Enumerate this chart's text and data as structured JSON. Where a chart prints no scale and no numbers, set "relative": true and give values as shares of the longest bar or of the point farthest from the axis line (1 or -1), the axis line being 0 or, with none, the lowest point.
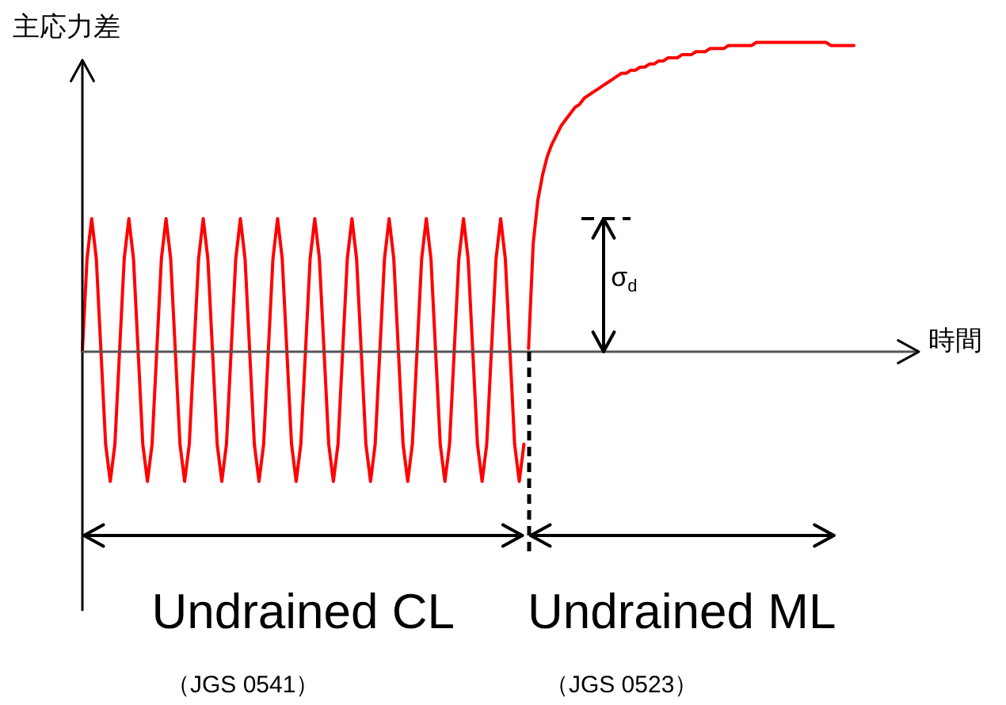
{
  "chart_data": {
    "type": "line",
    "relative": true,
    "tick_labels": false,
    "legend": false,
    "marker": "none",
    "line_style": "solid",
    "ylabel": "主応力差",
    "xlabel": "時間",
    "categories": [
      null,
      null,
      null,
      null,
      null,
      null,
      null,
      null,
      null,
      null,
      null,
      null,
      null,
      null,
      null,
      null,
      null,
      null,
      null,
      null,
      null,
      null,
      null,
      null,
      null,
      null,
      null,
      null,
      null,
      null,
      null,
      null,
      null,
      null,
      null,
      null,
      null,
      null,
      null,
      null,
      null,
      null,
      null,
      null,
      null,
      null,
      null,
      null,
      null,
      null,
      null,
      null,
      null,
      null,
      null,
      null,
      null,
      null,
      null,
      null,
      null,
      null,
      null,
      null,
      null,
      null,
      null,
      null,
      null,
      null,
      null,
      null,
      null,
      null,
      null,
      null,
      null,
      null,
      null,
      null,
      null,
      null,
      null,
      null,
      null,
      null,
      null,
      null,
      null,
      null,
      null,
      null,
      null,
      null,
      null,
      null,
      null,
      null,
      null,
      null,
      null,
      null,
      null,
      null,
      null,
      null,
      null,
      null,
      null,
      null,
      null,
      null,
      null,
      null,
      null,
      null,
      null,
      null,
      null,
      null,
      null,
      null,
      null,
      null,
      null,
      null,
      null,
      null,
      null,
      null,
      null,
      null,
      null,
      null,
      null,
      null,
      null,
      null,
      null,
      null,
      null,
      null,
      null,
      null,
      null,
      null,
      null,
      null,
      null,
      null,
      null,
      null,
      null,
      null,
      null,
      null,
      null,
      null,
      null,
      null,
      null,
      null,
      null,
      null,
      null,
      null,
      null
    ],
    "series": [
      {
        "color": "#ff0000",
        "values": [
          0,
          0.3,
          0.43,
          0.3,
          0,
          -0.3,
          -0.42,
          -0.3,
          0,
          0.3,
          0.43,
          0.3,
          0,
          -0.3,
          -0.42,
          -0.3,
          0,
          0.3,
          0.43,
          0.3,
          0,
          -0.3,
          -0.42,
          -0.3,
          0,
          0.3,
          0.43,
          0.3,
          0,
          -0.3,
          -0.42,
          -0.3,
          0,
          0.3,
          0.43,
          0.3,
          0,
          -0.3,
          -0.42,
          -0.3,
          0,
          0.3,
          0.43,
          0.3,
          0,
          -0.3,
          -0.42,
          -0.3,
          0,
          0.3,
          0.43,
          0.3,
          0,
          -0.3,
          -0.42,
          -0.3,
          0,
          0.3,
          0.43,
          0.3,
          0,
          -0.3,
          -0.42,
          -0.3,
          0,
          0.3,
          0.43,
          0.3,
          0,
          -0.3,
          -0.42,
          -0.3,
          0,
          0.3,
          0.43,
          0.3,
          0,
          -0.3,
          -0.42,
          -0.3,
          0,
          0.3,
          0.43,
          0.3,
          0,
          -0.3,
          -0.42,
          -0.3,
          0,
          0.3,
          0.43,
          0.3,
          0,
          -0.3,
          -0.42,
          -0.3,
          null,
          null,
          null,
          null,
          null,
          null,
          null,
          null,
          null,
          null,
          null,
          null,
          null,
          null,
          null,
          null,
          null,
          null,
          null,
          null,
          null,
          null,
          null,
          null,
          null,
          null,
          null,
          null,
          null,
          null,
          null,
          null,
          null,
          null,
          null,
          null,
          null,
          null,
          null,
          null,
          null,
          null,
          null,
          null,
          null,
          null,
          null,
          null,
          null,
          null,
          null,
          null,
          null,
          null,
          null,
          null,
          null,
          null,
          null,
          null,
          null,
          null,
          null,
          null,
          null,
          null,
          null,
          null,
          null,
          null,
          null
        ]
      },
      {
        "color": "#ff0000",
        "values": [
          null,
          null,
          null,
          null,
          null,
          null,
          null,
          null,
          null,
          null,
          null,
          null,
          null,
          null,
          null,
          null,
          null,
          null,
          null,
          null,
          null,
          null,
          null,
          null,
          null,
          null,
          null,
          null,
          null,
          null,
          null,
          null,
          null,
          null,
          null,
          null,
          null,
          null,
          null,
          null,
          null,
          null,
          null,
          null,
          null,
          null,
          null,
          null,
          null,
          null,
          null,
          null,
          null,
          null,
          null,
          null,
          null,
          null,
          null,
          null,
          null,
          null,
          null,
          null,
          null,
          null,
          null,
          null,
          null,
          null,
          null,
          null,
          null,
          null,
          null,
          null,
          null,
          null,
          null,
          null,
          null,
          null,
          null,
          null,
          null,
          null,
          null,
          null,
          null,
          null,
          null,
          null,
          null,
          null,
          null,
          null,
          0.01,
          0.35,
          0.49,
          0.57,
          0.63,
          0.67,
          0.7,
          0.73,
          0.75,
          0.77,
          0.79,
          0.8,
          0.82,
          0.83,
          0.84,
          0.85,
          0.86,
          0.87,
          0.88,
          0.89,
          0.9,
          0.9,
          0.91,
          0.91,
          0.92,
          0.92,
          0.93,
          0.93,
          0.94,
          0.94,
          0.95,
          0.95,
          0.95,
          0.96,
          0.96,
          0.96,
          0.97,
          0.97,
          0.97,
          0.98,
          0.98,
          0.98,
          0.98,
          0.99,
          0.99,
          0.99,
          0.99,
          0.99,
          0.99,
          1,
          1,
          1,
          1,
          1,
          1,
          1,
          1,
          1,
          1,
          1,
          1,
          1,
          1,
          1,
          1,
          0.99,
          0.99,
          0.99,
          0.99,
          0.99,
          0.99
        ]
      }
    ],
    "annotations": [
      "σ$_{d}$",
      "Undrained CL",
      "Undrained ML",
      "（JGS 0541）",
      "（JGS 0523）"
    ]
  }
}
